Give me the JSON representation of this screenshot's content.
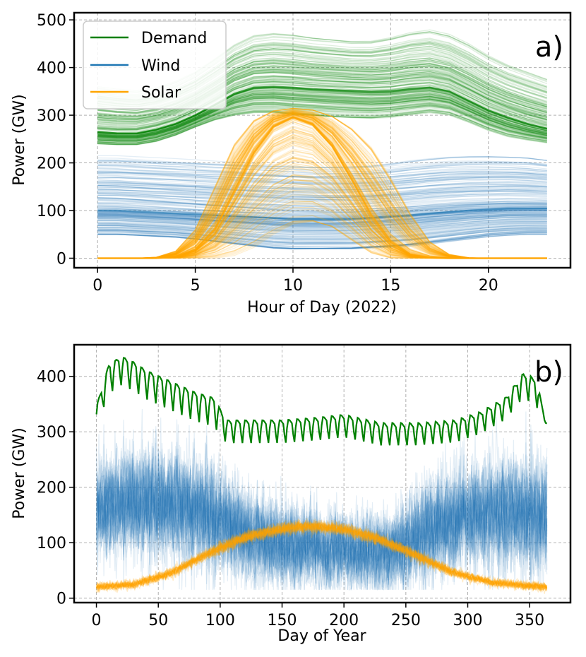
{
  "chart_data": [
    {
      "type": "line",
      "panel_label": "a)",
      "xlabel": "Hour of Day (2022)",
      "ylabel": "Power (GW)",
      "xlim": [
        -1.2,
        24.2
      ],
      "ylim": [
        -20,
        515
      ],
      "xticks": [
        0,
        5,
        10,
        15,
        20
      ],
      "yticks": [
        0,
        100,
        200,
        300,
        400,
        500
      ],
      "grid": true,
      "legend_position": "top-left",
      "legend": [
        "Demand",
        "Wind",
        "Solar"
      ],
      "colors": {
        "demand": "#008000",
        "wind": "#1f77b4",
        "solar": "#ffa500"
      },
      "x": [
        0,
        1,
        2,
        3,
        4,
        5,
        6,
        7,
        8,
        9,
        10,
        11,
        12,
        13,
        14,
        15,
        16,
        17,
        18,
        19,
        20,
        21,
        22,
        23
      ],
      "series": [
        {
          "name": "Demand",
          "band": "daily profiles (many days)",
          "values": [
            265,
            262,
            262,
            270,
            282,
            300,
            322,
            345,
            358,
            360,
            358,
            355,
            353,
            351,
            349,
            350,
            355,
            358,
            350,
            330,
            310,
            295,
            282,
            272
          ],
          "envelope_low": [
            240,
            238,
            238,
            245,
            258,
            275,
            290,
            300,
            305,
            305,
            300,
            298,
            295,
            293,
            292,
            295,
            300,
            305,
            300,
            285,
            268,
            255,
            248,
            242
          ],
          "envelope_high": [
            360,
            355,
            352,
            358,
            372,
            392,
            420,
            450,
            470,
            475,
            472,
            466,
            462,
            458,
            458,
            465,
            475,
            480,
            470,
            450,
            425,
            405,
            390,
            375
          ]
        },
        {
          "name": "Wind",
          "band": "daily profiles (many days)",
          "values": [
            100,
            100,
            98,
            96,
            94,
            92,
            90,
            88,
            86,
            84,
            82,
            82,
            82,
            83,
            85,
            88,
            90,
            94,
            97,
            100,
            102,
            104,
            104,
            104
          ],
          "envelope_low": [
            50,
            50,
            48,
            46,
            44,
            40,
            35,
            30,
            25,
            20,
            18,
            18,
            18,
            18,
            20,
            22,
            25,
            30,
            35,
            40,
            45,
            48,
            50,
            50
          ],
          "envelope_high": [
            215,
            215,
            213,
            211,
            209,
            207,
            205,
            203,
            201,
            199,
            197,
            195,
            195,
            195,
            196,
            200,
            205,
            209,
            212,
            213,
            213,
            212,
            210,
            205
          ]
        },
        {
          "name": "Solar",
          "band": "daily profiles (many days)",
          "values": [
            0,
            0,
            0,
            0.2,
            3,
            18,
            60,
            140,
            220,
            275,
            295,
            280,
            235,
            165,
            90,
            35,
            8,
            1,
            0,
            0,
            0,
            0,
            0,
            0
          ],
          "envelope_low": [
            0,
            0,
            0,
            0,
            0,
            0,
            0,
            5,
            20,
            45,
            65,
            70,
            60,
            35,
            10,
            0,
            0,
            0,
            0,
            0,
            0,
            0,
            0,
            0
          ],
          "envelope_high": [
            0,
            0,
            0,
            2,
            15,
            60,
            150,
            240,
            290,
            310,
            315,
            312,
            300,
            275,
            235,
            170,
            95,
            35,
            8,
            1,
            0,
            0,
            0,
            0
          ]
        }
      ]
    },
    {
      "type": "line",
      "panel_label": "b)",
      "xlabel": "Day of Year",
      "ylabel": "Power (GW)",
      "xlim": [
        -18,
        383
      ],
      "ylim": [
        -8,
        457
      ],
      "xticks": [
        0,
        50,
        100,
        150,
        200,
        250,
        300,
        350
      ],
      "yticks": [
        0,
        100,
        200,
        300,
        400
      ],
      "grid": true,
      "colors": {
        "demand": "#008000",
        "wind": "#1f77b4",
        "solar": "#ffa500"
      },
      "series": [
        {
          "name": "Demand",
          "description": "daily mean demand with weekly dips",
          "x": [
            0,
            10,
            20,
            30,
            40,
            60,
            80,
            95,
            105,
            120,
            150,
            180,
            200,
            230,
            260,
            290,
            310,
            330,
            345,
            355,
            364
          ],
          "values": [
            330,
            405,
            420,
            410,
            395,
            375,
            355,
            345,
            305,
            305,
            305,
            310,
            315,
            300,
            300,
            305,
            320,
            345,
            390,
            380,
            300
          ],
          "weekly_dip": [
            30,
            45,
            45,
            45,
            45,
            45,
            45,
            45,
            35,
            35,
            35,
            35,
            35,
            35,
            35,
            35,
            35,
            35,
            40,
            45,
            0
          ]
        },
        {
          "name": "Wind",
          "description": "many noisy daily traces (scenarios)",
          "x": [
            0,
            30,
            60,
            90,
            120,
            150,
            180,
            210,
            240,
            270,
            300,
            330,
            364
          ],
          "values": [
            165,
            175,
            170,
            155,
            115,
            95,
            90,
            85,
            85,
            125,
            150,
            155,
            150
          ],
          "spread": [
            60,
            65,
            65,
            65,
            55,
            50,
            48,
            45,
            45,
            60,
            60,
            65,
            65
          ]
        },
        {
          "name": "Solar",
          "description": "seasonal daily solar (scenarios)",
          "x": [
            0,
            30,
            60,
            90,
            120,
            150,
            172,
            200,
            230,
            260,
            290,
            320,
            350,
            364
          ],
          "values": [
            20,
            25,
            45,
            80,
            110,
            125,
            130,
            125,
            105,
            75,
            45,
            28,
            22,
            20
          ],
          "spread": [
            6,
            6,
            7,
            8,
            9,
            9,
            9,
            9,
            9,
            8,
            7,
            6,
            6,
            6
          ]
        }
      ]
    }
  ]
}
